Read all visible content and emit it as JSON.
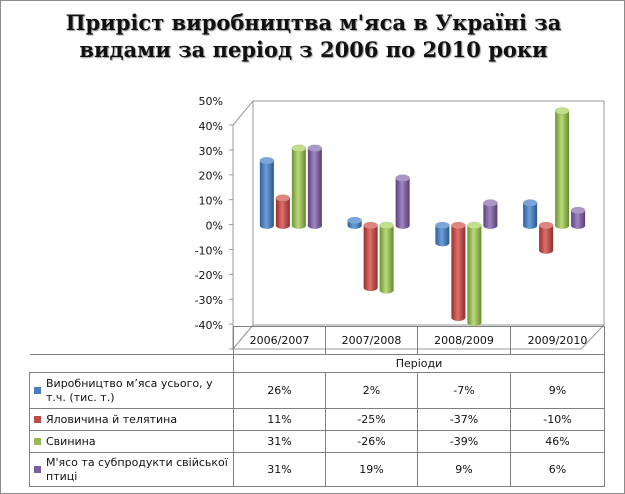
{
  "title_line1": "Приріст виробництва м'яса в Україні за",
  "title_line2": "видами за період з 2006 по 2010 роки",
  "chart_data": {
    "type": "bar",
    "title": "Приріст виробництва м'яса в Україні за видами за період з 2006 по 2010 роки",
    "xlabel": "Періоди",
    "ylabel": "",
    "ylim": [
      -0.4,
      0.5
    ],
    "y_ticks": [
      "50%",
      "40%",
      "30%",
      "20%",
      "10%",
      "0%",
      "-10%",
      "-20%",
      "-30%",
      "-40%"
    ],
    "categories": [
      "2006/2007",
      "2007/2008",
      "2008/2009",
      "2009/2010"
    ],
    "series": [
      {
        "name": "Виробництво м’яса усього, у т.ч. (тис. т.)",
        "color": "#4a7ebb",
        "values": [
          0.26,
          0.02,
          -0.07,
          0.09
        ],
        "labels": [
          "26%",
          "2%",
          "-7%",
          "9%"
        ]
      },
      {
        "name": "Яловичина й телятина",
        "color": "#be4b48",
        "values": [
          0.11,
          -0.25,
          -0.37,
          -0.1
        ],
        "labels": [
          "11%",
          "-25%",
          "-37%",
          "-10%"
        ]
      },
      {
        "name": "Свинина",
        "color": "#98b954",
        "values": [
          0.31,
          -0.26,
          -0.39,
          0.46
        ],
        "labels": [
          "31%",
          "-26%",
          "-39%",
          "46%"
        ]
      },
      {
        "name": "М'ясо та субпродукти свійської птиці",
        "color": "#7d5fa0",
        "values": [
          0.31,
          0.19,
          0.09,
          0.06
        ],
        "labels": [
          "31%",
          "19%",
          "9%",
          "6%"
        ]
      }
    ],
    "grid": false,
    "legend": "table-below"
  }
}
